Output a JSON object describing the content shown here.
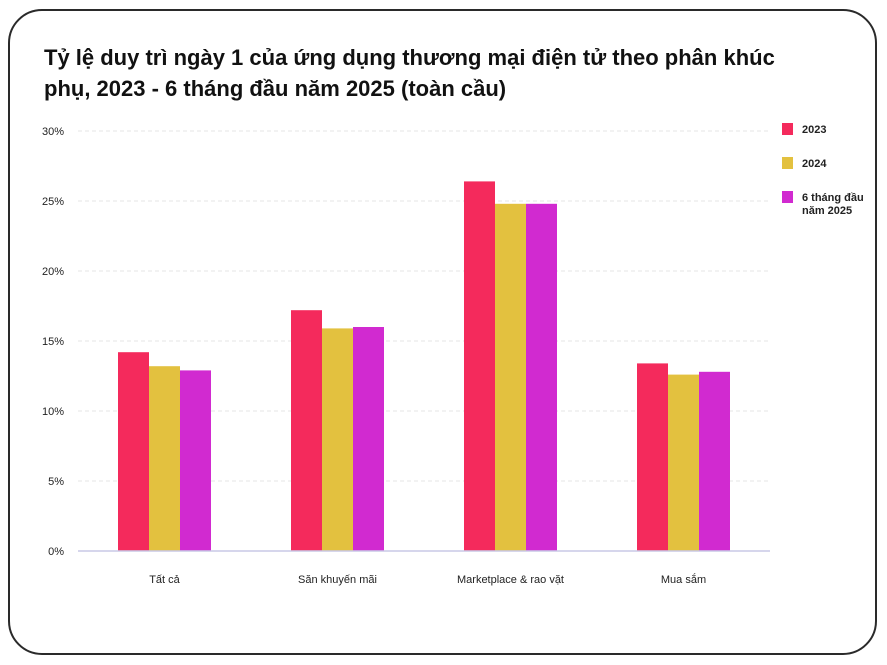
{
  "chart_data": {
    "type": "bar",
    "title": "Tỷ lệ duy trì ngày 1 của ứng dụng thương mại điện tử theo phân khúc phụ, 2023 - 6 tháng đầu năm 2025 (toàn cầu)",
    "xlabel": "",
    "ylabel": "",
    "categories": [
      "Tất cả",
      "Săn khuyến mãi",
      "Marketplace & rao vặt",
      "Mua sắm"
    ],
    "series": [
      {
        "name": "2023",
        "values": [
          14.2,
          17.2,
          26.4,
          13.4
        ],
        "color": "#f42a5c"
      },
      {
        "name": "2024",
        "values": [
          13.2,
          15.9,
          24.8,
          12.6
        ],
        "color": "#e3c13f"
      },
      {
        "name": "6 tháng đầu năm 2025",
        "legend_lines": [
          "6 tháng đầu",
          "năm 2025"
        ],
        "values": [
          12.9,
          16.0,
          24.8,
          12.8
        ],
        "color": "#d12ad0"
      }
    ],
    "ylim": [
      0,
      30
    ],
    "yticks": [
      0,
      5,
      10,
      15,
      20,
      25,
      30
    ],
    "ytick_labels": [
      "0%",
      "5%",
      "10%",
      "15%",
      "20%",
      "25%",
      "30%"
    ],
    "grid": true,
    "legend_position": "right"
  }
}
